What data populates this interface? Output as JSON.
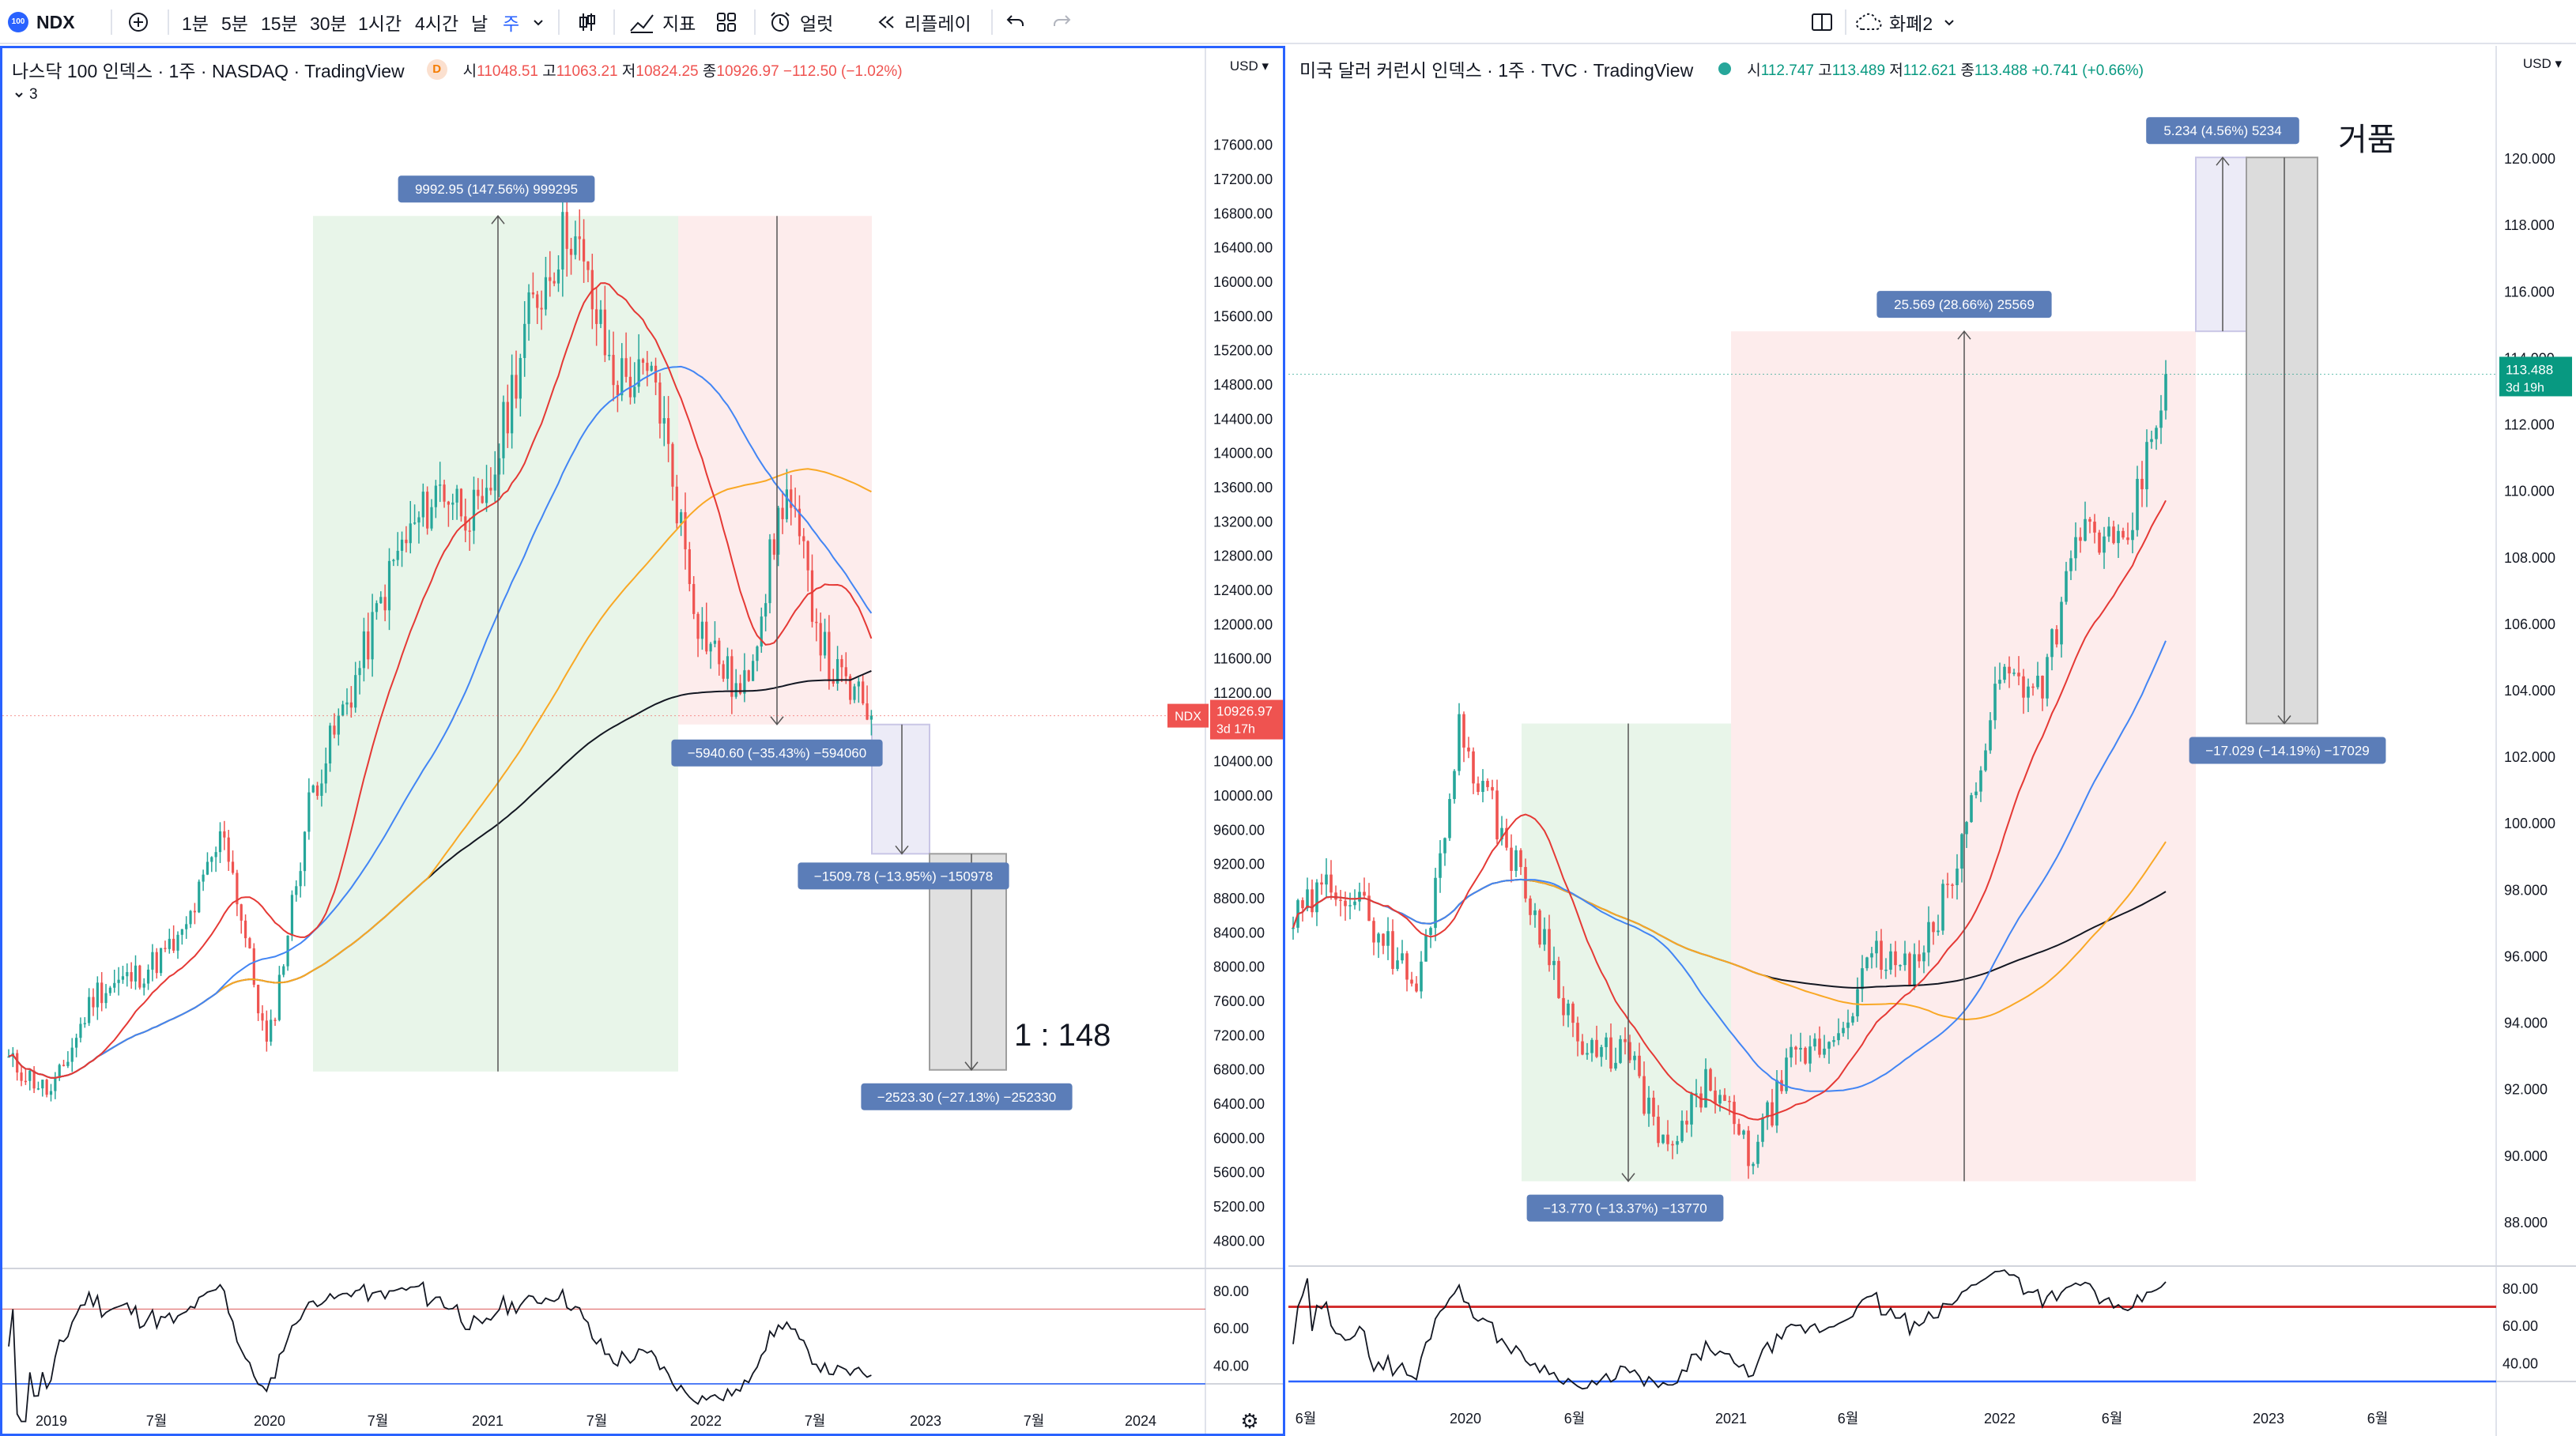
{
  "toolbar": {
    "symbol": "NDX",
    "logo_text": "100",
    "intervals": [
      "1분",
      "5분",
      "15분",
      "30분",
      "1시간",
      "4시간",
      "날",
      "주"
    ],
    "active_interval": "주",
    "indicators_label": "지표",
    "alert_label": "얼럿",
    "replay_label": "리플레이",
    "layout_label": "화폐2",
    "icons": [
      "plus-circle-icon",
      "chevron-down-icon",
      "candles-icon",
      "indicators-icon",
      "templates-icon",
      "alarm-icon",
      "replay-icon",
      "undo-icon",
      "redo-icon",
      "layout-icon",
      "cloud-icon"
    ]
  },
  "left": {
    "title": "나스닥 100 인덱스 · 1주 · NASDAQ · TradingView",
    "badge": "D",
    "ohlc": {
      "o_label": "시",
      "o": "11048.51",
      "h_label": "고",
      "h": "11063.21",
      "l_label": "저",
      "l": "10824.25",
      "c_label": "종",
      "c": "10926.97",
      "chg": "−112.50 (−1.02%)"
    },
    "layers": "3",
    "currency": "USD",
    "price_ticks": [
      "17600.00",
      "17200.00",
      "16800.00",
      "16400.00",
      "16000.00",
      "15600.00",
      "15200.00",
      "14800.00",
      "14400.00",
      "14000.00",
      "13600.00",
      "13200.00",
      "12800.00",
      "12400.00",
      "12000.00",
      "11600.00",
      "11200.00",
      "10400.00",
      "10000.00",
      "9600.00",
      "9200.00",
      "8800.00",
      "8400.00",
      "8000.00",
      "7600.00",
      "7200.00",
      "6800.00",
      "6400.00",
      "6000.00",
      "5600.00",
      "5200.00",
      "4800.00"
    ],
    "price_label": {
      "symbol": "NDX",
      "price": "10926.97",
      "countdown": "3d 17h"
    },
    "rsi_ticks": [
      "80.00",
      "60.00",
      "40.00"
    ],
    "time_ticks": [
      "2019",
      "7월",
      "2020",
      "7월",
      "2021",
      "7월",
      "2022",
      "7월",
      "2023",
      "7월",
      "2024"
    ],
    "measures": [
      "9992.95 (147.56%) 999295",
      "−5940.60 (−35.43%) −594060",
      "−1509.78 (−13.95%) −150978",
      "−2523.30 (−27.13%) −252330"
    ],
    "annotation": "1 : 148",
    "colors": {
      "up": "#26a69a",
      "down": "#ef5350",
      "ma20": "#e53935",
      "ma50": "#4285f4",
      "ma100": "#f9a825",
      "ma200": "#131722",
      "gain_zone": "#e8f5e9",
      "loss_zone": "#fdecec",
      "measure": "#5b7db8",
      "price_tag": "#ef5350"
    }
  },
  "right": {
    "title": "미국 달러 커런시 인덱스 · 1주 · TVC · TradingView",
    "ohlc": {
      "o_label": "시",
      "o": "112.747",
      "h_label": "고",
      "h": "113.489",
      "l_label": "저",
      "l": "112.621",
      "c_label": "종",
      "c": "113.488",
      "chg": "+0.741 (+0.66%)"
    },
    "currency": "USD",
    "price_ticks": [
      "120.000",
      "118.000",
      "116.000",
      "114.000",
      "112.000",
      "110.000",
      "108.000",
      "106.000",
      "104.000",
      "102.000",
      "100.000",
      "98.000",
      "96.000",
      "94.000",
      "92.000",
      "90.000",
      "88.000"
    ],
    "price_label": {
      "price": "113.488",
      "countdown": "3d 19h"
    },
    "rsi_ticks": [
      "80.00",
      "60.00",
      "40.00"
    ],
    "time_ticks": [
      "6월",
      "2020",
      "6월",
      "2021",
      "6월",
      "2022",
      "6월",
      "2023",
      "6월"
    ],
    "measures": [
      "5.234 (4.56%) 5234",
      "25.569 (28.66%) 25569",
      "−17.029 (−14.19%) −17029",
      "−13.770 (−13.37%) −13770"
    ],
    "annotation": "거품",
    "colors": {
      "price_tag": "#089981",
      "rsi_line": "#d32f2f",
      "rsi_base": "#2962ff"
    }
  },
  "chart_data": [
    {
      "type": "line",
      "title": "나스닥 100 인덱스 · 1주 · NASDAQ · TradingView",
      "xlabel": "",
      "ylabel": "USD",
      "ylim": [
        4600,
        17800
      ],
      "x": [
        "2018-11",
        "2019-01",
        "2019-05",
        "2019-07",
        "2019-11",
        "2020-02",
        "2020-03",
        "2020-06",
        "2020-09",
        "2020-12",
        "2021-02",
        "2021-05",
        "2021-09",
        "2021-11",
        "2022-01",
        "2022-03",
        "2022-05",
        "2022-06",
        "2022-08",
        "2022-09",
        "2022-10"
      ],
      "series": [
        {
          "name": "NDX",
          "values": [
            6900,
            6500,
            7700,
            7900,
            8300,
            9600,
            7000,
            10000,
            11300,
            12800,
            13600,
            13200,
            15500,
            16700,
            14900,
            14800,
            12000,
            11100,
            13600,
            11500,
            10927
          ]
        }
      ],
      "measures": [
        {
          "from": {
            "x": "2020-03",
            "y": 6771
          },
          "to": {
            "x": "2021-11",
            "y": 16764
          },
          "label": "9992.95 (147.56%) 999295"
        },
        {
          "from": {
            "x": "2021-11",
            "y": 16764
          },
          "to": {
            "x": "2022-10",
            "y": 10824
          },
          "label": "−5940.60 (−35.43%) −594060"
        },
        {
          "from": {
            "x": "2022-11",
            "y": 10824
          },
          "to": {
            "x": "2023-01",
            "y": 9314
          },
          "label": "−1509.78 (−13.95%) −150978"
        },
        {
          "from": {
            "x": "2023-01",
            "y": 9314
          },
          "to": {
            "x": "2023-04",
            "y": 6790
          },
          "label": "−2523.30 (−27.13%) −252330"
        }
      ]
    },
    {
      "type": "line",
      "title": "미국 달러 커런시 인덱스 · 1주 · TVC · TradingView",
      "xlabel": "",
      "ylabel": "USD",
      "ylim": [
        87,
        121
      ],
      "x": [
        "2019-06",
        "2019-09",
        "2019-12",
        "2020-03a",
        "2020-03b",
        "2020-04",
        "2020-06",
        "2020-08",
        "2020-10",
        "2021-01",
        "2021-03",
        "2021-05",
        "2021-07",
        "2021-09",
        "2021-11",
        "2022-01",
        "2022-03",
        "2022-05",
        "2022-06",
        "2022-07",
        "2022-08",
        "2022-09"
      ],
      "series": [
        {
          "name": "DXY",
          "values": [
            97.0,
            98.3,
            96.9,
            94.9,
            102.8,
            99.8,
            96.7,
            92.9,
            93.2,
            89.9,
            92.3,
            89.9,
            92.8,
            93.5,
            96.0,
            95.5,
            98.8,
            104.5,
            104.2,
            109.0,
            108.0,
            113.5
          ]
        }
      ],
      "measures": [
        {
          "from": {
            "x": "2020-03b",
            "y": 102.99
          },
          "to": {
            "x": "2021-01",
            "y": 89.22
          },
          "label": "−13.770 (−13.37%) −13770"
        },
        {
          "from": {
            "x": "2021-01",
            "y": 89.22
          },
          "to": {
            "x": "2022-09",
            "y": 114.79
          },
          "label": "25.569 (28.66%) 25569"
        },
        {
          "from": {
            "x": "2022-09",
            "y": 114.79
          },
          "to": {
            "x": "2022-11",
            "y": 120.02
          },
          "label": "5.234 (4.56%) 5234"
        },
        {
          "from": {
            "x": "2022-11",
            "y": 120.02
          },
          "to": {
            "x": "2023-01",
            "y": 102.99
          },
          "label": "−17.029 (−14.19%) −17029"
        }
      ]
    }
  ]
}
